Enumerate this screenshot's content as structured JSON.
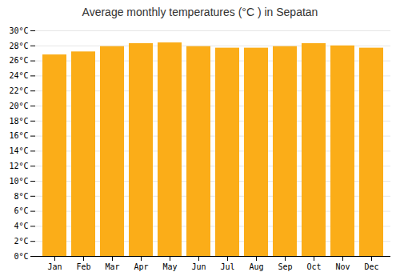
{
  "chart_data": {
    "type": "bar",
    "title": "Average monthly temperatures (°C ) in Sepatan",
    "categories": [
      "Jan",
      "Feb",
      "Mar",
      "Apr",
      "May",
      "Jun",
      "Jul",
      "Aug",
      "Sep",
      "Oct",
      "Nov",
      "Dec"
    ],
    "values": [
      26.8,
      27.2,
      27.9,
      28.3,
      28.4,
      27.9,
      27.7,
      27.7,
      27.9,
      28.3,
      28.0,
      27.7
    ],
    "color": "#FBAD18",
    "ylim": [
      0,
      30
    ],
    "yticks": [
      {
        "value": 0,
        "label": "0°C"
      },
      {
        "value": 2,
        "label": "2°C"
      },
      {
        "value": 4,
        "label": "4°C"
      },
      {
        "value": 6,
        "label": "6°C"
      },
      {
        "value": 8,
        "label": "8°C"
      },
      {
        "value": 10,
        "label": "10°C"
      },
      {
        "value": 12,
        "label": "12°C"
      },
      {
        "value": 14,
        "label": "14°C"
      },
      {
        "value": 16,
        "label": "16°C"
      },
      {
        "value": 18,
        "label": "18°C"
      },
      {
        "value": 20,
        "label": "20°C"
      },
      {
        "value": 22,
        "label": "22°C"
      },
      {
        "value": 24,
        "label": "24°C"
      },
      {
        "value": 26,
        "label": "26°C"
      },
      {
        "value": 28,
        "label": "28°C"
      },
      {
        "value": 30,
        "label": "30°C"
      }
    ],
    "grid": true
  }
}
